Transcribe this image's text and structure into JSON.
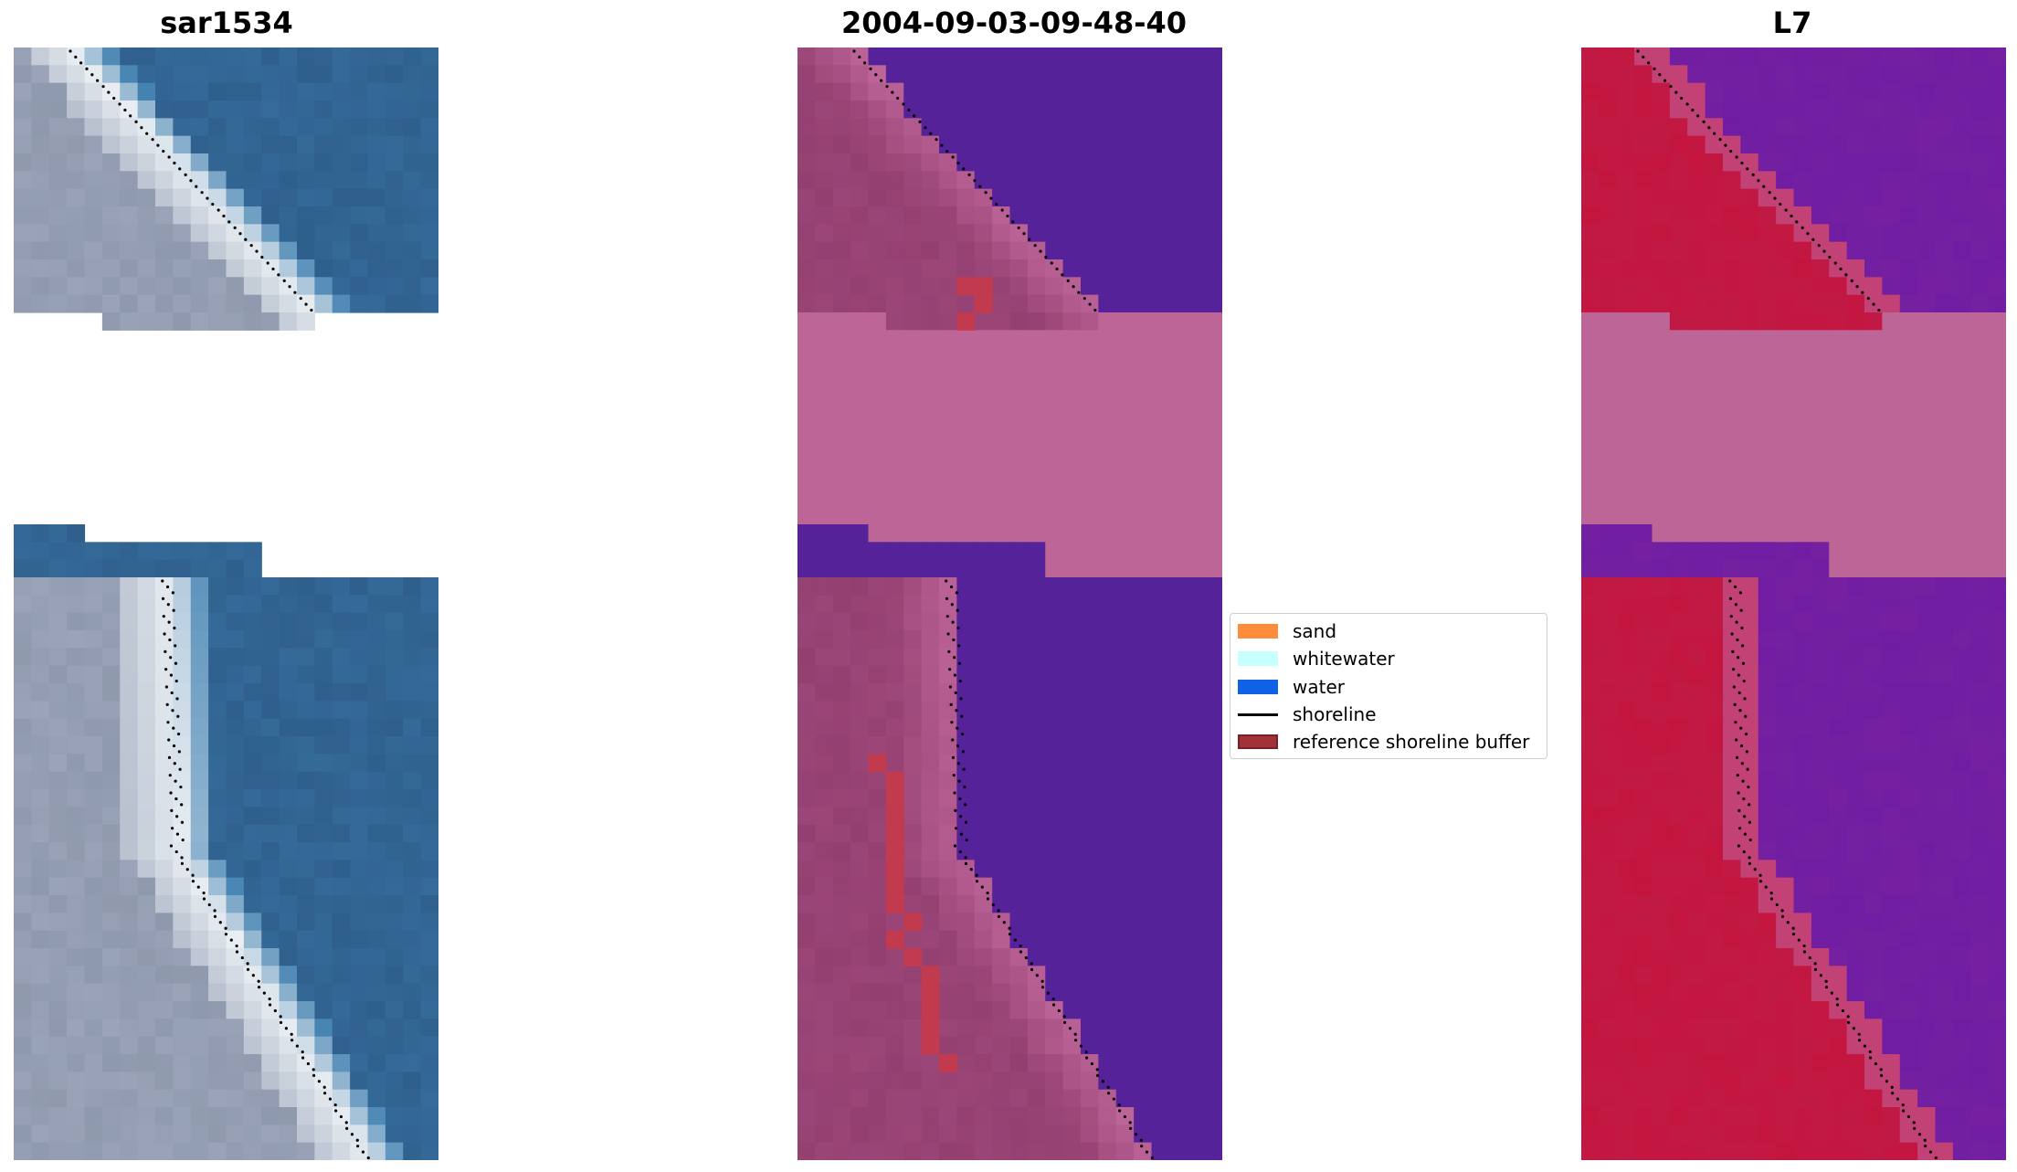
{
  "panels": [
    {
      "title": "sar1534",
      "kind": "rgb"
    },
    {
      "title": "2004-09-03-09-48-40",
      "kind": "classified"
    },
    {
      "title": "L7",
      "kind": "index"
    }
  ],
  "legend": {
    "items": [
      {
        "label": "sand",
        "color": "#ff8c3a",
        "type": "patch"
      },
      {
        "label": "whitewater",
        "color": "#c8ffff",
        "type": "patch"
      },
      {
        "label": "water",
        "color": "#1060e8",
        "type": "patch"
      },
      {
        "label": "shoreline",
        "color": "#000000",
        "type": "line"
      },
      {
        "label": "reference shoreline buffer",
        "color": "#a0323a",
        "type": "patch",
        "edge": "#7a1f28"
      }
    ]
  },
  "colors": {
    "rgb_water": "#2f5f8c",
    "rgb_sand": "#9aa3b8",
    "rgb_whitewater": "#e8eef2",
    "class_sand_overlay": "#933f70",
    "class_water_overlay": "#55229a",
    "class_nodata": "#bd6596",
    "class_buffer": "#c23a4e",
    "index_land": "#c4153f",
    "index_water": "#7420a0",
    "index_nodata": "#bd6596"
  }
}
